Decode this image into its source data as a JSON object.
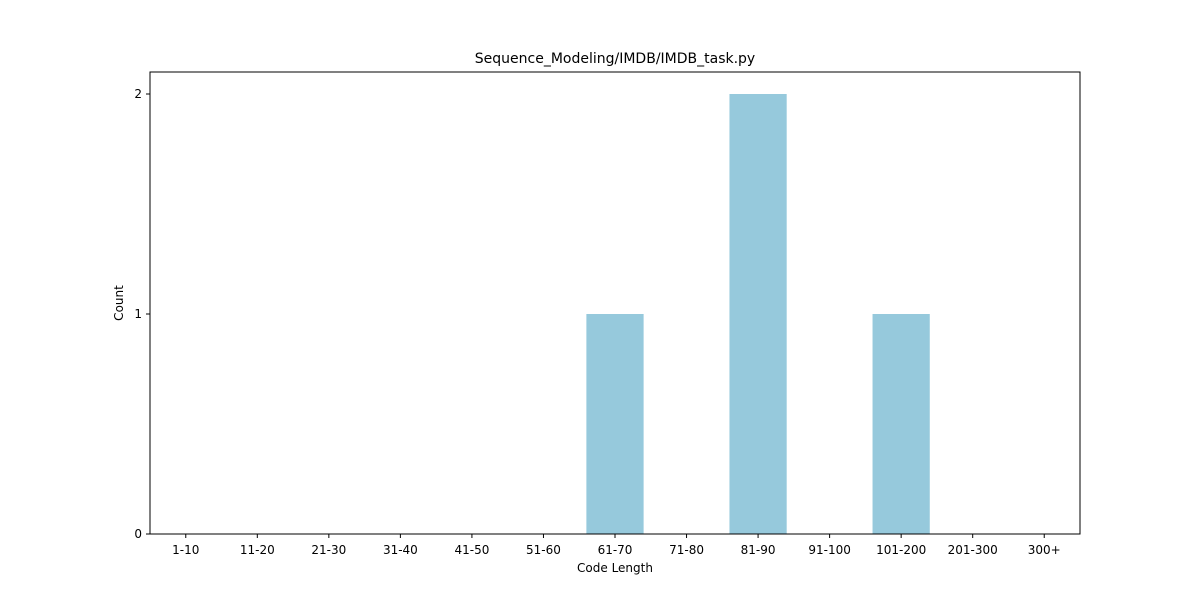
{
  "chart_data": {
    "type": "bar",
    "title": "Sequence_Modeling/IMDB/IMDB_task.py",
    "xlabel": "Code Length",
    "ylabel": "Count",
    "categories": [
      "1-10",
      "11-20",
      "21-30",
      "31-40",
      "41-50",
      "51-60",
      "61-70",
      "71-80",
      "81-90",
      "91-100",
      "101-200",
      "201-300",
      "300+"
    ],
    "values": [
      0,
      0,
      0,
      0,
      0,
      0,
      1,
      0,
      2,
      0,
      1,
      0,
      0
    ],
    "yticks": [
      0,
      1,
      2
    ],
    "ylim": [
      0,
      2.1
    ],
    "grid": false,
    "bar_color": "#96c9dc"
  }
}
